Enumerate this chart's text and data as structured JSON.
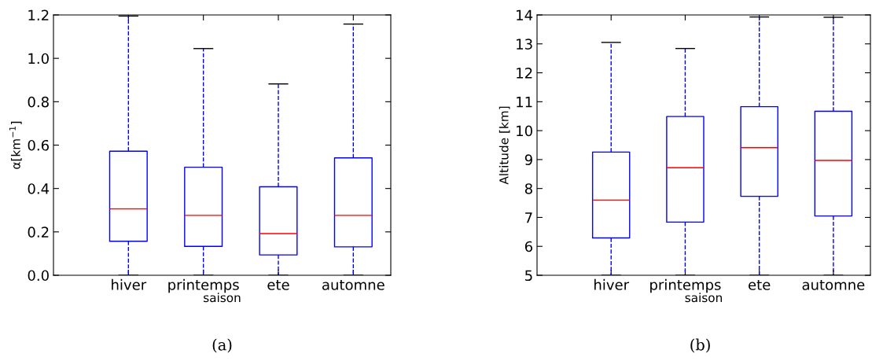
{
  "chart_data": [
    {
      "type": "box",
      "xlabel": "saison",
      "ylabel": "α[km$^{−1}$]",
      "categories": [
        "hiver",
        "printemps",
        "ete",
        "automne"
      ],
      "ylim": [
        0.0,
        1.2
      ],
      "yticks": [
        {
          "value": 0.0,
          "label": "0.0"
        },
        {
          "value": 0.2,
          "label": "0.2"
        },
        {
          "value": 0.4,
          "label": "0.4"
        },
        {
          "value": 0.6,
          "label": "0.6"
        },
        {
          "value": 0.8,
          "label": "0.8"
        },
        {
          "value": 1.0,
          "label": "1.0"
        },
        {
          "value": 1.2,
          "label": "1.2"
        }
      ],
      "grid": false,
      "annotations": [
        "(a)"
      ],
      "boxes": [
        {
          "low": 0.0,
          "q1": 0.157,
          "median": 0.306,
          "q3": 0.572,
          "high": 1.195
        },
        {
          "low": 0.0,
          "q1": 0.133,
          "median": 0.276,
          "q3": 0.498,
          "high": 1.045
        },
        {
          "low": 0.0,
          "q1": 0.094,
          "median": 0.192,
          "q3": 0.408,
          "high": 0.882
        },
        {
          "low": 0.0,
          "q1": 0.131,
          "median": 0.276,
          "q3": 0.541,
          "high": 1.158
        }
      ]
    },
    {
      "type": "box",
      "xlabel": "saison",
      "ylabel": "Altitude [km]",
      "categories": [
        "hiver",
        "printemps",
        "ete",
        "automne"
      ],
      "ylim": [
        5,
        14
      ],
      "yticks": [
        5,
        6,
        7,
        8,
        9,
        10,
        11,
        12,
        13,
        14
      ],
      "grid": false,
      "annotations": [
        "(b)"
      ],
      "boxes": [
        {
          "low": 5.0,
          "q1": 6.29,
          "median": 7.6,
          "q3": 9.26,
          "high": 13.05
        },
        {
          "low": 5.0,
          "q1": 6.84,
          "median": 8.72,
          "q3": 10.49,
          "high": 12.84
        },
        {
          "low": 5.0,
          "q1": 7.73,
          "median": 9.41,
          "q3": 10.83,
          "high": 13.93
        },
        {
          "low": 5.0,
          "q1": 7.05,
          "median": 8.97,
          "q3": 10.67,
          "high": 13.92
        }
      ]
    }
  ]
}
